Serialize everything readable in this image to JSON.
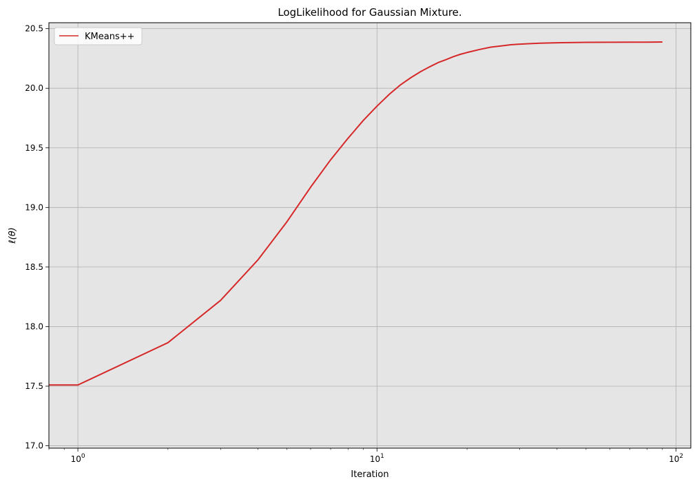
{
  "chart_data": {
    "type": "line",
    "title": "LogLikelihood for Gaussian Mixture.",
    "xlabel": "Iteration",
    "ylabel": "ℓ(θ)",
    "xscale": "log",
    "xlim": [
      0.8,
      112
    ],
    "ylim": [
      16.98,
      20.55
    ],
    "xtick_labels": [
      {
        "value": 1,
        "base": "10",
        "exp": "0"
      },
      {
        "value": 10,
        "base": "10",
        "exp": "1"
      },
      {
        "value": 100,
        "base": "10",
        "exp": "2"
      }
    ],
    "yticks": [
      17.0,
      17.5,
      18.0,
      18.5,
      19.0,
      19.5,
      20.0,
      20.5
    ],
    "ytick_labels": [
      "17.0",
      "17.5",
      "18.0",
      "18.5",
      "19.0",
      "19.5",
      "20.0",
      "20.5"
    ],
    "grid": true,
    "background": "#e5e5e5",
    "legend_position": "top-left",
    "series": [
      {
        "name": "KMeans++",
        "color": "#d62728",
        "x": [
          0,
          1,
          2,
          3,
          4,
          5,
          6,
          7,
          8,
          9,
          10,
          11,
          12,
          13,
          14,
          15,
          16,
          17,
          18,
          19,
          20,
          22,
          24,
          26,
          28,
          30,
          35,
          40,
          50,
          60,
          70,
          80,
          90
        ],
        "y": [
          17.51,
          17.51,
          17.865,
          18.22,
          18.56,
          18.88,
          19.17,
          19.4,
          19.58,
          19.73,
          19.85,
          19.95,
          20.03,
          20.09,
          20.14,
          20.18,
          20.215,
          20.24,
          20.265,
          20.285,
          20.3,
          20.325,
          20.345,
          20.355,
          20.365,
          20.37,
          20.378,
          20.382,
          20.385,
          20.386,
          20.387,
          20.387,
          20.388
        ]
      }
    ]
  }
}
